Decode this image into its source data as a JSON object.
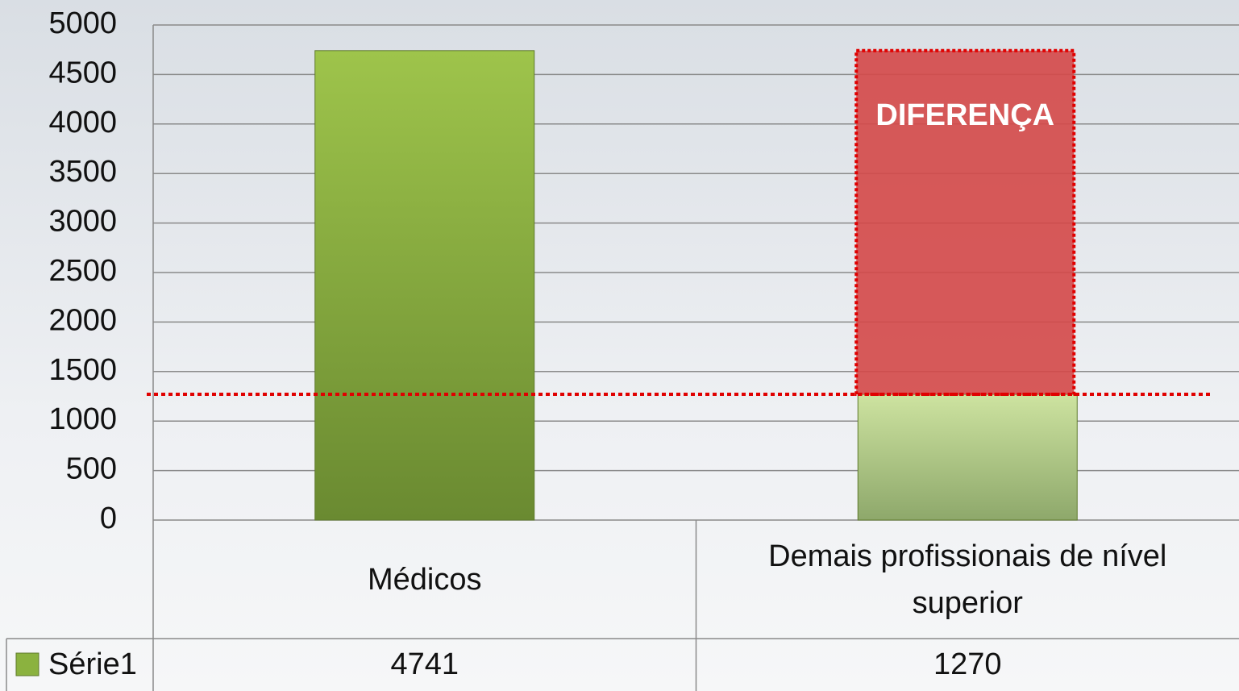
{
  "chart_data": {
    "type": "bar",
    "categories": [
      "Médicos",
      "Demais profissionais de nível superior"
    ],
    "series": [
      {
        "name": "Série1",
        "color": "#8bb23f",
        "values": [
          4741,
          1270
        ]
      }
    ],
    "annotation": "DIFERENÇA",
    "ylim": [
      0,
      5000
    ],
    "yticks": [
      0,
      500,
      1000,
      1500,
      2000,
      2500,
      3000,
      3500,
      4000,
      4500,
      5000
    ],
    "grid": true
  }
}
